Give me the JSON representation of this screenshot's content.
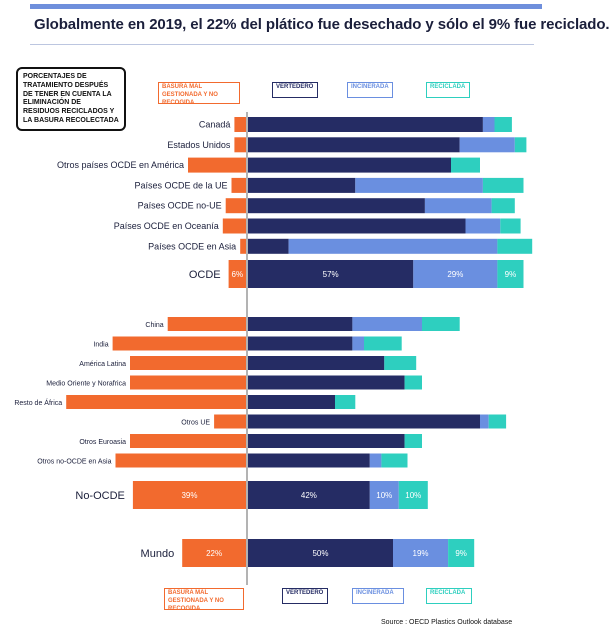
{
  "title": "Globalmente en 2019, el 22% del plático fue desechado y sólo el 9% fue reciclado.",
  "info_box": "PORCENTAJES DE TRATAMIENTO DESPUÉS DE TENER EN CUENTA LA ELIMINACIÓN DE RESIDUOS RECICLADOS Y LA BASURA RECOLECTADA",
  "legend": {
    "mismanaged": "BASURA MAL GESTIONADA Y NO RECOGIDA",
    "landfill": "VERTEDERO",
    "incinerated": "INCINERADA",
    "recycled": "RECICLADA"
  },
  "source": "Source : OECD Plastics Outlook database",
  "colors": {
    "mismanaged": "#f26a2e",
    "landfill": "#252c64",
    "incinerated": "#6a8fe0",
    "recycled": "#2ecfbf",
    "axis": "#9a9a9a"
  },
  "chart_data": {
    "type": "bar",
    "orientation": "horizontal-diverging",
    "unit": "%",
    "series_order": [
      "mismanaged",
      "landfill",
      "incinerated",
      "recycled"
    ],
    "groups": [
      {
        "rows": [
          {
            "label": "Canadá",
            "mismanaged": 4,
            "landfill": 81,
            "incinerated": 4,
            "recycled": 6
          },
          {
            "label": "Estados Unidos",
            "mismanaged": 4,
            "landfill": 73,
            "incinerated": 19,
            "recycled": 4
          },
          {
            "label": "Otros países OCDE en América",
            "mismanaged": 20,
            "landfill": 70,
            "incinerated": 0,
            "recycled": 10
          },
          {
            "label": "Países OCDE de la UE",
            "mismanaged": 5,
            "landfill": 37,
            "incinerated": 44,
            "recycled": 14
          },
          {
            "label": "Países OCDE no-UE",
            "mismanaged": 7,
            "landfill": 61,
            "incinerated": 23,
            "recycled": 8
          },
          {
            "label": "Países OCDE en Oceanía",
            "mismanaged": 8,
            "landfill": 75,
            "incinerated": 12,
            "recycled": 7
          },
          {
            "label": "Países OCDE en Asia",
            "mismanaged": 2,
            "landfill": 14,
            "incinerated": 72,
            "recycled": 12
          }
        ],
        "total": {
          "label": "OCDE",
          "mismanaged": 6,
          "landfill": 57,
          "incinerated": 29,
          "recycled": 9,
          "labels": {
            "mismanaged": "6%",
            "landfill": "57%",
            "incinerated": "29%",
            "recycled": "9%"
          }
        }
      },
      {
        "rows": [
          {
            "label": "China",
            "mismanaged": 27,
            "landfill": 36,
            "incinerated": 24,
            "recycled": 13
          },
          {
            "label": "India",
            "mismanaged": 46,
            "landfill": 36,
            "incinerated": 4,
            "recycled": 13
          },
          {
            "label": "América Latina",
            "mismanaged": 40,
            "landfill": 47,
            "incinerated": 0,
            "recycled": 11
          },
          {
            "label": "Medio Oriente y Norafrica",
            "mismanaged": 40,
            "landfill": 54,
            "incinerated": 0,
            "recycled": 6
          },
          {
            "label": "Resto de África",
            "mismanaged": 62,
            "landfill": 30,
            "incinerated": 0,
            "recycled": 7
          },
          {
            "label": "Otros UE",
            "mismanaged": 11,
            "landfill": 80,
            "incinerated": 3,
            "recycled": 6
          },
          {
            "label": "Otros Euroasia",
            "mismanaged": 40,
            "landfill": 54,
            "incinerated": 0,
            "recycled": 6
          },
          {
            "label": "Otros no-OCDE en Asia",
            "mismanaged": 45,
            "landfill": 42,
            "incinerated": 4,
            "recycled": 9
          }
        ],
        "total": {
          "label": "No-OCDE",
          "mismanaged": 39,
          "landfill": 42,
          "incinerated": 10,
          "recycled": 10,
          "labels": {
            "mismanaged": "39%",
            "landfill": "42%",
            "incinerated": "10%",
            "recycled": "10%"
          }
        }
      }
    ],
    "world": {
      "label": "Mundo",
      "mismanaged": 22,
      "landfill": 50,
      "incinerated": 19,
      "recycled": 9,
      "labels": {
        "mismanaged": "22%",
        "landfill": "50%",
        "incinerated": "19%",
        "recycled": "9%"
      }
    }
  }
}
